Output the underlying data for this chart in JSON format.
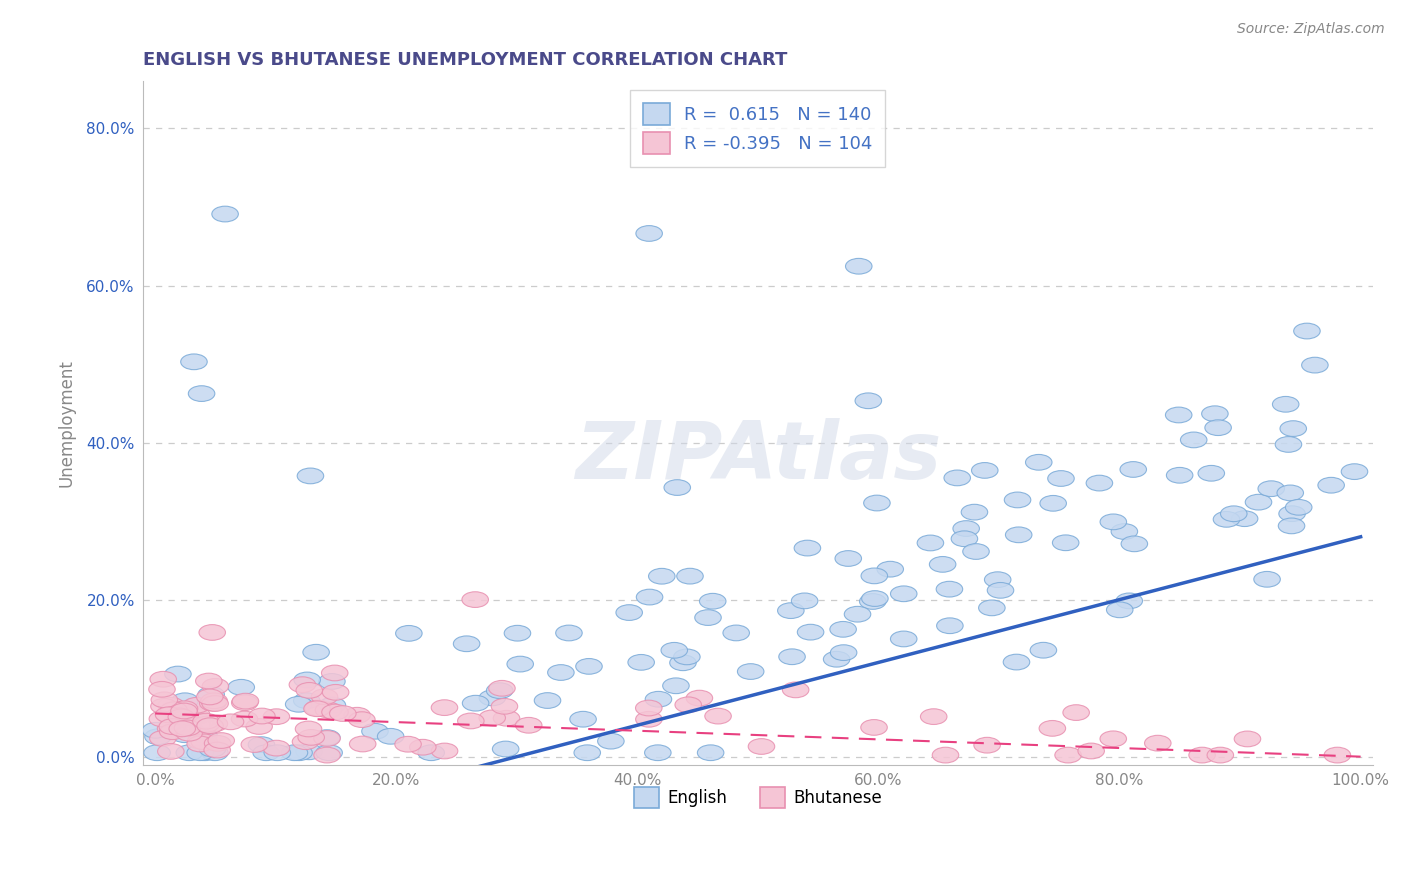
{
  "title": "ENGLISH VS BHUTANESE UNEMPLOYMENT CORRELATION CHART",
  "source": "Source: ZipAtlas.com",
  "ylabel": "Unemployment",
  "xlim": [
    -0.01,
    1.01
  ],
  "ylim": [
    -0.01,
    0.86
  ],
  "xticks": [
    0.0,
    0.2,
    0.4,
    0.6,
    0.8,
    1.0
  ],
  "xtick_labels": [
    "0.0%",
    "20.0%",
    "40.0%",
    "60.0%",
    "80.0%",
    "100.0%"
  ],
  "yticks": [
    0.0,
    0.2,
    0.4,
    0.6,
    0.8
  ],
  "ytick_labels": [
    "0.0%",
    "20.0%",
    "40.0%",
    "60.0%",
    "80.0%"
  ],
  "english_facecolor": "#c5d8f0",
  "english_edgecolor": "#7aaad8",
  "bhutanese_facecolor": "#f5c5d5",
  "bhutanese_edgecolor": "#e890b0",
  "english_line_color": "#3060c0",
  "bhutanese_line_color": "#e84080",
  "english_R": 0.615,
  "english_N": 140,
  "bhutanese_R": -0.395,
  "bhutanese_N": 104,
  "title_color": "#4a4a8a",
  "tick_color": "#888888",
  "grid_color": "#cccccc",
  "watermark": "ZIPAtlas",
  "source_color": "#888888"
}
